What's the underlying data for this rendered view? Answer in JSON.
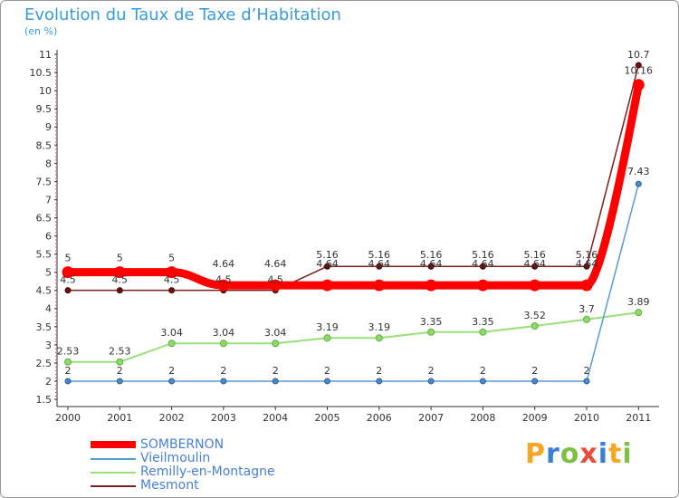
{
  "chart_data": {
    "type": "line",
    "title": "Evolution du Taux de Taxe d’Habitation",
    "unit_label": "(en %)",
    "x": [
      "2000",
      "2001",
      "2002",
      "2003",
      "2004",
      "2005",
      "2006",
      "2007",
      "2008",
      "2009",
      "2010",
      "2011"
    ],
    "ylim": [
      1.5,
      11
    ],
    "yticks": [
      "1.5",
      "2",
      "2.5",
      "3",
      "3.5",
      "4",
      "4.5",
      "5",
      "5.5",
      "6",
      "6.5",
      "7",
      "7.5",
      "8",
      "8.5",
      "9",
      "9.5",
      "10",
      "10.5",
      "11"
    ],
    "series": [
      {
        "name": "SOMBERNON",
        "color": "#ff0000",
        "values": [
          5,
          5,
          5,
          4.64,
          4.64,
          4.64,
          4.64,
          4.64,
          4.64,
          4.64,
          4.64,
          10.16
        ],
        "labels": [
          "5",
          "5",
          "5",
          "4.64",
          "4.64",
          "4.64",
          "4.64",
          "4.64",
          "4.64",
          "4.64",
          "4.64",
          "10.16"
        ]
      },
      {
        "name": "Vieilmoulin",
        "color": "#5b9ad0",
        "values": [
          2,
          2,
          2,
          2,
          2,
          2,
          2,
          2,
          2,
          2,
          2,
          7.43
        ],
        "labels": [
          "2",
          "2",
          "2",
          "2",
          "2",
          "2",
          "2",
          "2",
          "2",
          "2",
          "2",
          "7.43"
        ]
      },
      {
        "name": "Remilly-en-Montagne",
        "color": "#99e07a",
        "values": [
          2.53,
          2.53,
          3.04,
          3.04,
          3.04,
          3.19,
          3.19,
          3.35,
          3.35,
          3.52,
          3.7,
          3.89
        ],
        "labels": [
          "2.53",
          "2.53",
          "3.04",
          "3.04",
          "3.04",
          "3.19",
          "3.19",
          "3.35",
          "3.35",
          "3.52",
          "3.7",
          "3.89"
        ]
      },
      {
        "name": "Mesmont",
        "color": "#7a2020",
        "values": [
          4.5,
          4.5,
          4.5,
          4.5,
          4.5,
          5.16,
          5.16,
          5.16,
          5.16,
          5.16,
          5.16,
          10.7
        ],
        "labels": [
          "4.5",
          "4.5",
          "4.5",
          "4.5",
          "4.5",
          "5.16",
          "5.16",
          "5.16",
          "5.16",
          "5.16",
          "5.16",
          "10.7"
        ]
      }
    ],
    "grid": false,
    "legend_position": "bottom-left"
  },
  "logo": {
    "letters": [
      "P",
      "r",
      "o",
      "x",
      "i",
      "t",
      "i"
    ],
    "colors": [
      "#f5a623",
      "#3a7fd5",
      "#7cc143",
      "#e84c3d",
      "#3a7fd5",
      "#f5a623",
      "#7cc143"
    ]
  }
}
